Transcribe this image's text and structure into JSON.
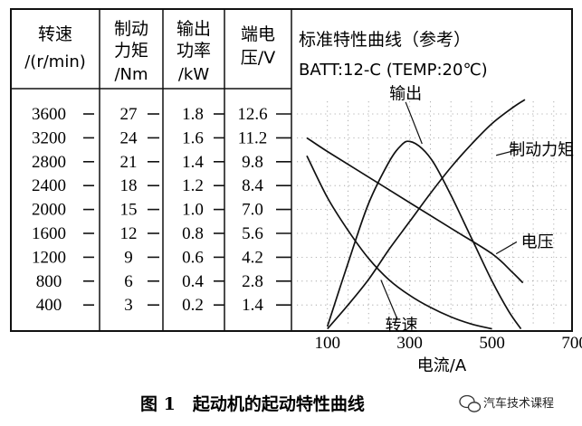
{
  "chart_data": {
    "type": "line",
    "title": "标准特性曲线（参考）",
    "subtitle": "BATT:12-C  (TEMP:20℃)",
    "caption": "图 1　起动机的起动特性曲线",
    "watermark": "汽车技术课程",
    "xlabel": "电流/A",
    "x_ticks": [
      100,
      300,
      500,
      700
    ],
    "xlim": [
      50,
      750
    ],
    "scale_headers": [
      {
        "id": "speed",
        "line1": "转速",
        "line2": "/(r/min)"
      },
      {
        "id": "torque",
        "line1": "制动",
        "line2": "力矩",
        "line3": "/Nm"
      },
      {
        "id": "power",
        "line1": "输出",
        "line2": "功率",
        "line3": "/kW"
      },
      {
        "id": "voltage",
        "line1": "端电",
        "line2": "压/V"
      }
    ],
    "scales": {
      "speed": [
        "3600",
        "3200",
        "2800",
        "2400",
        "2000",
        "1600",
        "1200",
        "800",
        "400"
      ],
      "torque": [
        "27",
        "24",
        "21",
        "18",
        "15",
        "12",
        "9",
        "6",
        "3"
      ],
      "power": [
        "1.8",
        "1.6",
        "1.4",
        "1.2",
        "1.0",
        "0.8",
        "0.6",
        "0.4",
        "0.2"
      ],
      "voltage": [
        "12.6",
        "11.2",
        "9.8",
        "8.4",
        "7.0",
        "5.6",
        "4.2",
        "2.8",
        "1.4"
      ]
    },
    "series": [
      {
        "name": "输出",
        "axis": "power",
        "label_x": 290,
        "label_y": 1.97,
        "x": [
          100,
          150,
          200,
          250,
          280,
          300,
          330,
          360,
          400,
          450,
          500,
          540,
          570
        ],
        "y": [
          0.02,
          0.55,
          1.05,
          1.4,
          1.54,
          1.57,
          1.51,
          1.38,
          1.12,
          0.76,
          0.4,
          0.15,
          0.0
        ]
      },
      {
        "name": "制动力矩",
        "axis": "torque",
        "label_x": 620,
        "label_y": 22.5,
        "x": [
          100,
          150,
          200,
          250,
          300,
          350,
          400,
          450,
          500,
          550,
          580
        ],
        "y": [
          0,
          3,
          6.2,
          10,
          13.5,
          17,
          20.3,
          23.2,
          25.8,
          27.8,
          28.8
        ]
      },
      {
        "name": "电压",
        "axis": "voltage",
        "label_x": 610,
        "label_y": 5.1,
        "x": [
          50,
          100,
          200,
          300,
          400,
          500,
          550,
          575
        ],
        "y": [
          11.2,
          10.4,
          8.9,
          7.4,
          5.9,
          4.4,
          3.3,
          2.7
        ]
      },
      {
        "name": "转速",
        "axis": "speed",
        "label_x": 280,
        "label_y": 60,
        "x": [
          50,
          100,
          150,
          200,
          250,
          300,
          350,
          400,
          450,
          500
        ],
        "y": [
          2900,
          2200,
          1650,
          1180,
          820,
          560,
          360,
          200,
          80,
          0
        ]
      }
    ]
  }
}
